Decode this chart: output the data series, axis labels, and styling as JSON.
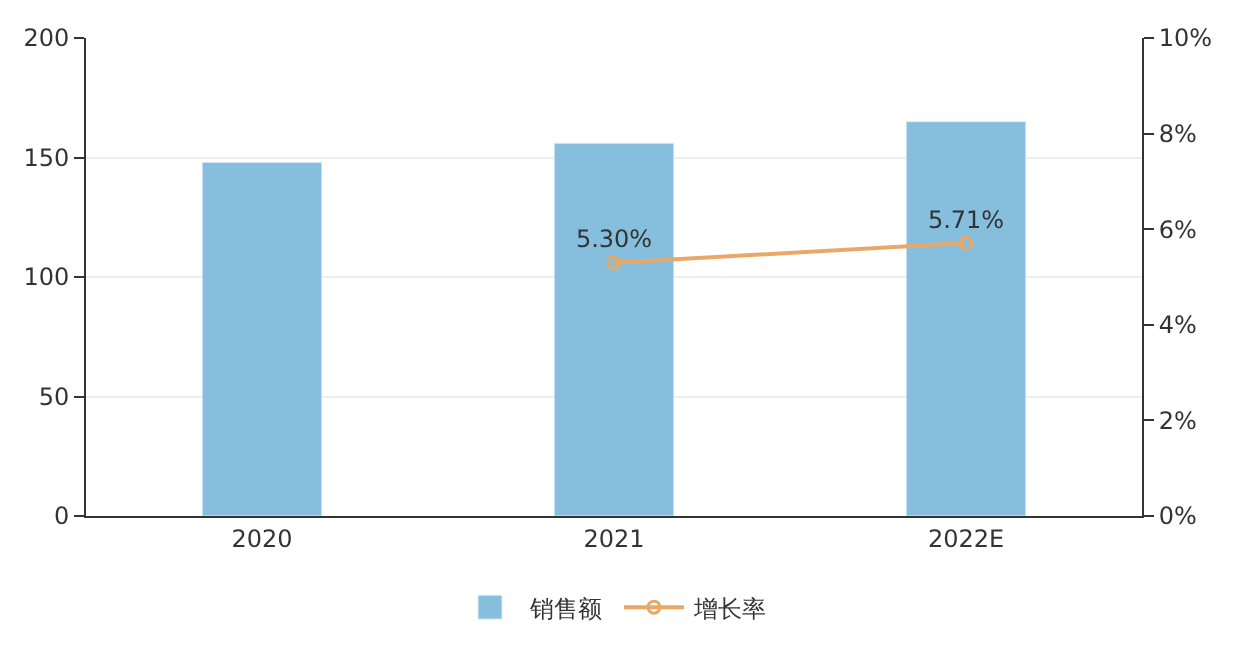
{
  "chart_data": {
    "type": "bar",
    "categories": [
      "2020",
      "2021",
      "2022E"
    ],
    "series": [
      {
        "name": "销售额",
        "color": "#86bfdd",
        "values": [
          148,
          156,
          165
        ]
      },
      {
        "name": "增长率",
        "type": "line",
        "axis": "y2",
        "color": "#e8a868",
        "values": [
          null,
          5.3,
          5.71
        ],
        "value_labels": [
          null,
          "5.30%",
          "5.71%"
        ],
        "marker": "circle"
      }
    ],
    "ylim": [
      0,
      200
    ],
    "yticks": [
      0,
      50,
      100,
      150,
      200
    ],
    "y2lim": [
      0,
      10
    ],
    "y2ticks": [
      {
        "value": 0,
        "label": "0%"
      },
      {
        "value": 2,
        "label": "2%"
      },
      {
        "value": 4,
        "label": "4%"
      },
      {
        "value": 6,
        "label": "6%"
      },
      {
        "value": 8,
        "label": "8%"
      },
      {
        "value": 10,
        "label": "10%"
      }
    ],
    "grid": "y",
    "legend": "bottom"
  }
}
